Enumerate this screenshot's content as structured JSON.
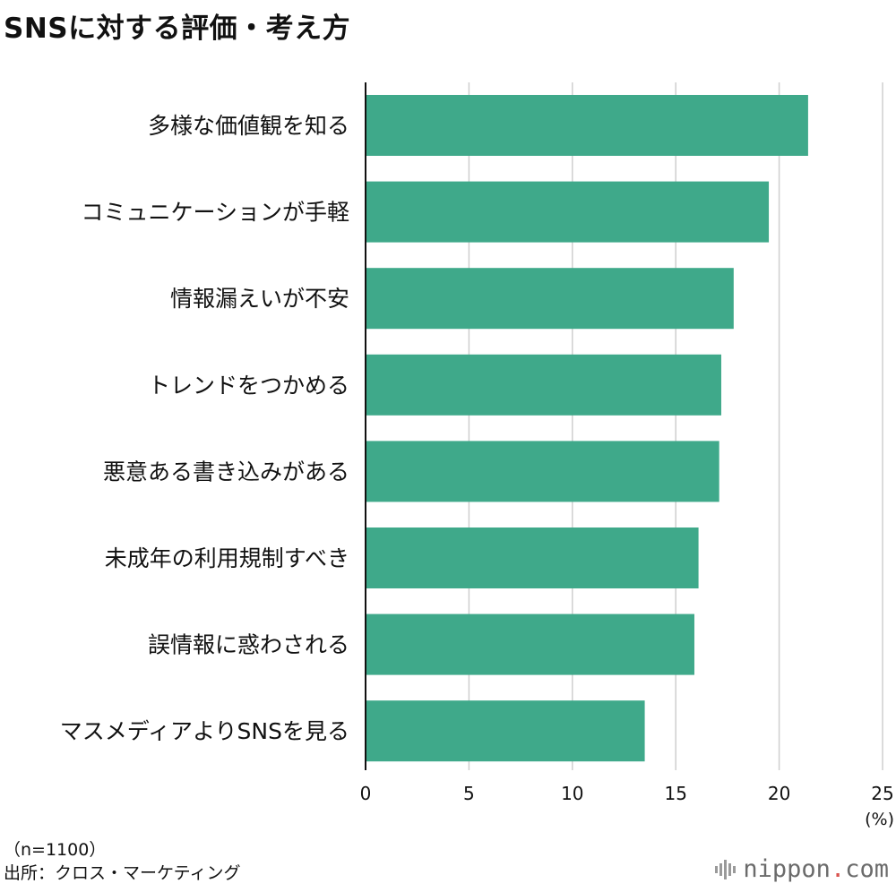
{
  "chart_data": {
    "type": "bar",
    "orientation": "horizontal",
    "title": "SNSに対する評価・考え方",
    "categories": [
      "多様な価値観を知る",
      "コミュニケーションが手軽",
      "情報漏えいが不安",
      "トレンドをつかめる",
      "悪意ある書き込みがある",
      "未成年の利用規制すべき",
      "誤情報に惑わされる",
      "マスメディアよりSNSを見る"
    ],
    "values": [
      21.4,
      19.5,
      17.8,
      17.2,
      17.1,
      16.1,
      15.9,
      13.5
    ],
    "xlim": [
      0,
      25
    ],
    "xticks": [
      "0",
      "5",
      "10",
      "15",
      "20",
      "25"
    ],
    "unit": "(%)",
    "grid": true,
    "bar_color": "#3fa98a"
  },
  "footnote": {
    "n": "（n=1100）",
    "source": "出所：クロス・マーケティング"
  },
  "brand": {
    "name": "nippon",
    "dot": ".",
    "suffix": "com",
    "icon": "nippon-logo-icon"
  }
}
